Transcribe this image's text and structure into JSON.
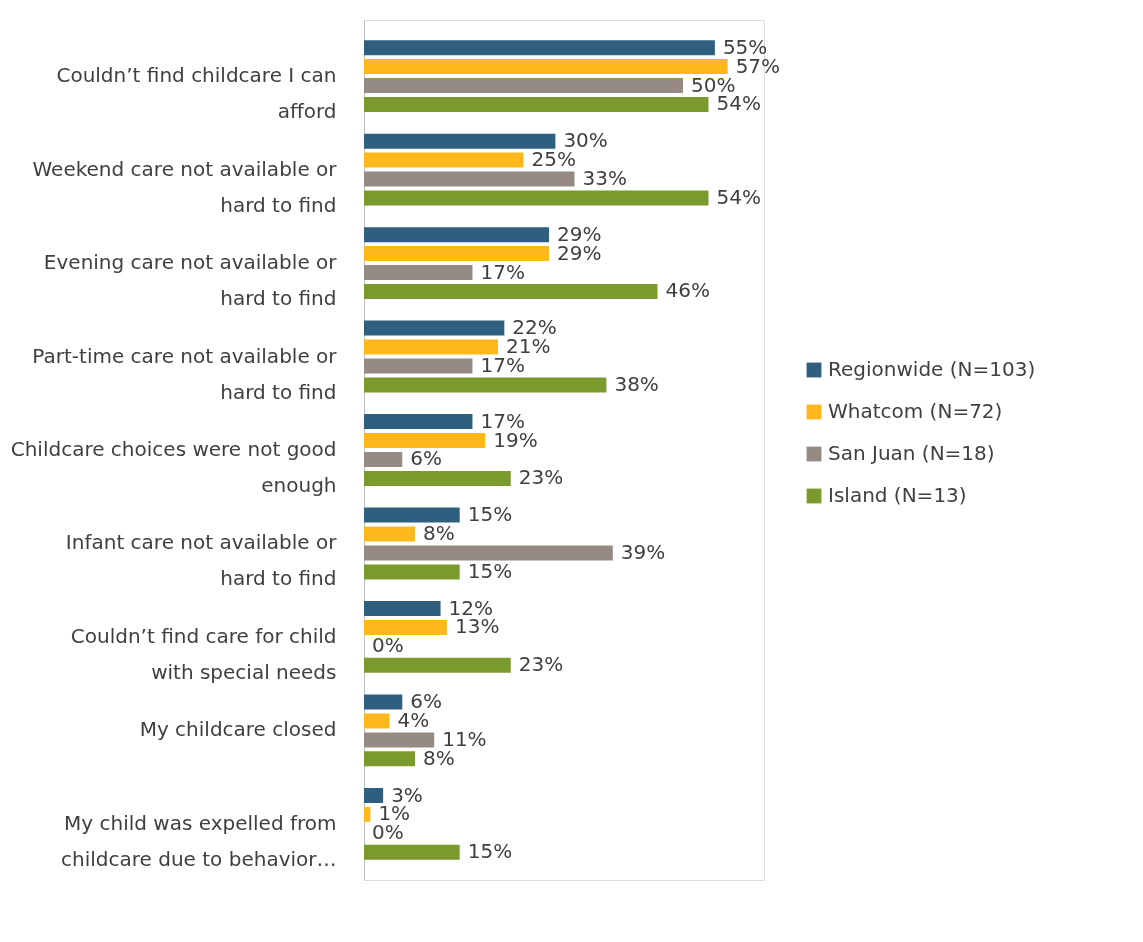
{
  "chart_data": {
    "type": "bar",
    "orientation": "horizontal",
    "tick_labels": "y",
    "legend": "right",
    "grid": false,
    "categories": [
      "Couldn’t find childcare I can afford",
      "Weekend care not available or hard to find",
      "Evening care not available or hard to find",
      "Part-time care not available or hard to find",
      "Childcare choices were not good enough",
      "Infant care not available or hard to find",
      "Couldn’t find care for child with special needs",
      "My childcare closed",
      "My child was expelled from childcare due to behavior…"
    ],
    "series": [
      {
        "name": "Regionwide (N=103)",
        "color": "#2e5f7f",
        "values": [
          55,
          30,
          29,
          22,
          17,
          15,
          12,
          6,
          3
        ],
        "value_labels": [
          "55%",
          "30%",
          "29%",
          "22%",
          "17%",
          "15%",
          "12%",
          "6%",
          "3%"
        ]
      },
      {
        "name": "Whatcom (N=72)",
        "color": "#ffb81c",
        "values": [
          57,
          25,
          29,
          21,
          19,
          8,
          13,
          4,
          1
        ],
        "value_labels": [
          "57%",
          "25%",
          "29%",
          "21%",
          "19%",
          "8%",
          "13%",
          "4%",
          "1%"
        ]
      },
      {
        "name": "San Juan (N=18)",
        "color": "#968a84",
        "values": [
          50,
          33,
          17,
          17,
          6,
          39,
          0,
          11,
          0
        ],
        "value_labels": [
          "50%",
          "33%",
          "17%",
          "17%",
          "6%",
          "39%",
          "0%",
          "11%",
          "0%"
        ]
      },
      {
        "name": "Island (N=13)",
        "color": "#7a9a2e",
        "values": [
          54,
          54,
          46,
          38,
          23,
          15,
          23,
          8,
          15
        ],
        "value_labels": [
          "54%",
          "54%",
          "46%",
          "38%",
          "23%",
          "15%",
          "23%",
          "8%",
          "15%"
        ]
      }
    ]
  }
}
